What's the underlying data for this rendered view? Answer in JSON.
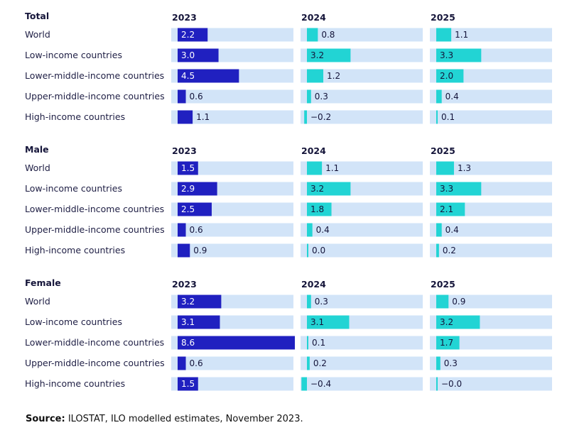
{
  "chart_data": {
    "type": "bar",
    "title": "",
    "years": [
      "2023",
      "2024",
      "2025"
    ],
    "categories": [
      "World",
      "Low-income countries",
      "Lower-middle-income countries",
      "Upper-middle-income countries",
      "High-income countries"
    ],
    "groups": [
      {
        "name": "Total",
        "years": [
          {
            "year": "2023",
            "values": [
              2.2,
              3.0,
              4.5,
              0.6,
              1.1
            ],
            "labels": [
              "2.2",
              "3.0",
              "4.5",
              "0.6",
              "1.1"
            ]
          },
          {
            "year": "2024",
            "values": [
              0.8,
              3.2,
              1.2,
              0.3,
              -0.2
            ],
            "labels": [
              "0.8",
              "3.2",
              "1.2",
              "0.3",
              "−0.2"
            ]
          },
          {
            "year": "2025",
            "values": [
              1.1,
              3.3,
              2.0,
              0.4,
              0.1
            ],
            "labels": [
              "1.1",
              "3.3",
              "2.0",
              "0.4",
              "0.1"
            ]
          }
        ]
      },
      {
        "name": "Male",
        "years": [
          {
            "year": "2023",
            "values": [
              1.5,
              2.9,
              2.5,
              0.6,
              0.9
            ],
            "labels": [
              "1.5",
              "2.9",
              "2.5",
              "0.6",
              "0.9"
            ]
          },
          {
            "year": "2024",
            "values": [
              1.1,
              3.2,
              1.8,
              0.4,
              0.0
            ],
            "labels": [
              "1.1",
              "3.2",
              "1.8",
              "0.4",
              "0.0"
            ]
          },
          {
            "year": "2025",
            "values": [
              1.3,
              3.3,
              2.1,
              0.4,
              0.2
            ],
            "labels": [
              "1.3",
              "3.3",
              "2.1",
              "0.4",
              "0.2"
            ]
          }
        ]
      },
      {
        "name": "Female",
        "years": [
          {
            "year": "2023",
            "values": [
              3.2,
              3.1,
              8.6,
              0.6,
              1.5
            ],
            "labels": [
              "3.2",
              "3.1",
              "8.6",
              "0.6",
              "1.5"
            ]
          },
          {
            "year": "2024",
            "values": [
              0.3,
              3.1,
              0.1,
              0.2,
              -0.4
            ],
            "labels": [
              "0.3",
              "3.1",
              "0.1",
              "0.2",
              "−0.4"
            ]
          },
          {
            "year": "2025",
            "values": [
              0.9,
              3.2,
              1.7,
              0.3,
              -0.0
            ],
            "labels": [
              "0.9",
              "3.2",
              "1.7",
              "0.3",
              "−0.0"
            ]
          }
        ]
      }
    ],
    "xlim": [
      -0.4,
      8.6
    ],
    "source_label": "Source:",
    "source_text": " ILOSTAT, ILO modelled estimates, November 2023."
  },
  "colors": {
    "bar_2023": "#2020c0",
    "bar_other": "#22d4d4",
    "track": "#d2e4f8",
    "label_on_bar": "#ffffff",
    "label_dark": "#14143a"
  }
}
